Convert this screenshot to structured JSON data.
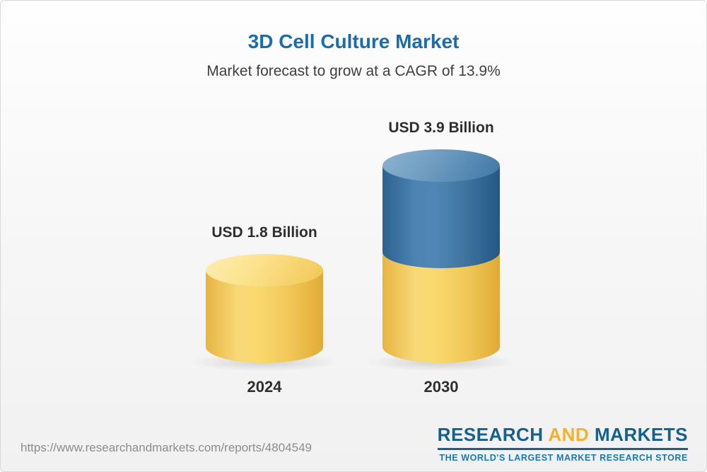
{
  "header": {
    "title": "3D Cell Culture Market",
    "subtitle": "Market forecast to grow at a CAGR of 13.9%"
  },
  "chart_data": {
    "type": "bar",
    "variant": "3d-cylinder",
    "title": "3D Cell Culture Market",
    "subtitle": "Market forecast to grow at a CAGR of 13.9%",
    "cagr": "13.9%",
    "unit": "USD Billion",
    "categories": [
      "2024",
      "2030"
    ],
    "values": [
      1.8,
      3.9
    ],
    "bars": [
      {
        "category": "2024",
        "value": 1.8,
        "label": "USD 1.8 Billion",
        "color": "#f6cd5f"
      },
      {
        "category": "2030",
        "value": 3.9,
        "label": "USD 3.9 Billion",
        "segments": [
          {
            "value": 1.8,
            "color": "#f6cd5f"
          },
          {
            "value": 2.1,
            "color": "#3d75a4"
          }
        ]
      }
    ],
    "legend": "none",
    "grid": false
  },
  "footer": {
    "url": "https://www.researchandmarkets.com/reports/4804549",
    "logo": {
      "part1": "RESEARCH",
      "part2": "AND",
      "part3": "MARKETS",
      "tagline": "THE WORLD'S LARGEST MARKET RESEARCH STORE"
    }
  },
  "colors": {
    "title_blue": "#1b6cad",
    "bar_yellow": "#f6cd5f",
    "bar_blue": "#3d75a4",
    "logo_blue": "#15608f",
    "logo_gold": "#f2b230",
    "tagline_blue": "#1a7ab0"
  }
}
